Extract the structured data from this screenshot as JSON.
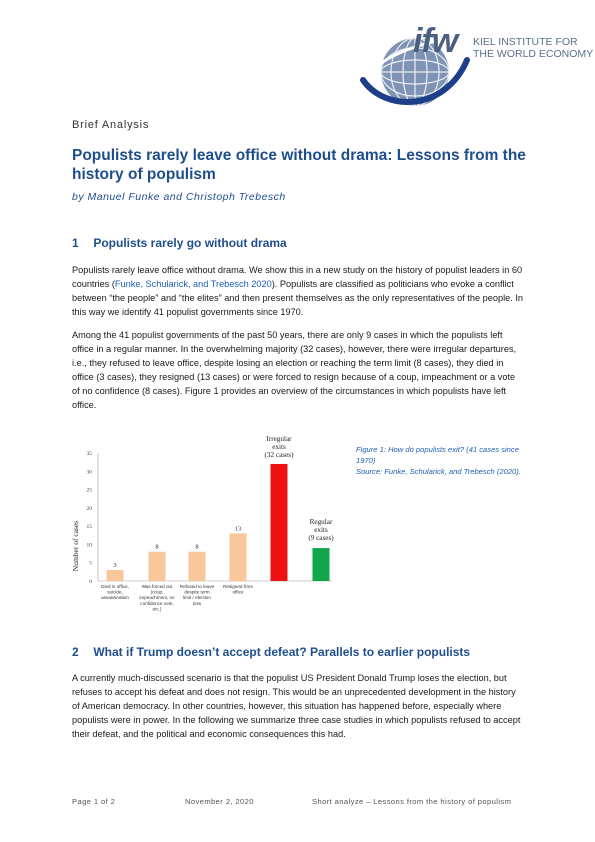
{
  "header": {
    "logo_ifw": "ifw",
    "logo_line1": "KIEL INSTITUTE FOR",
    "logo_line2": "THE WORLD ECONOMY",
    "kicker": "Brief Analysis"
  },
  "title": "Populists rarely leave office without drama: Lessons from the history of populism",
  "authors": "by Manuel Funke and Christoph Trebesch",
  "section1": {
    "num": "1",
    "heading": "Populists rarely go without drama",
    "p1_a": "Populists rarely leave office without drama. We show this in a new study on the history of populist leaders in 60 countries (",
    "p1_link": "Funke, Schularick, and Trebesch 2020",
    "p1_b": "). Populists are classified as politicians who evoke a conflict between “the people” and “the elites” and then present themselves as the only representatives of the people. In this way we identify 41 populist governments since 1970.",
    "p2": "Among the 41 populist governments of the past 50 years, there are only 9 cases in which the populists left office in a regular manner. In the overwhelming majority (32 cases), however, there were irregular departures, i.e., they refused to leave office, despite losing an election or reaching the term limit (8 cases), they died in office (3 cases), they resigned (13 cases) or were forced to resign because of a coup, impeachment or a vote of no confidence (8 cases). Figure 1 provides an overview of the circumstances in which populists have left office."
  },
  "figure": {
    "caption_1": "Figure 1: How do populists exit? (41 cases since 1970)",
    "caption_2": "Source: Funke, Schularick, and Trebesch (2020)."
  },
  "chart_data": {
    "type": "bar",
    "ylabel": "Number of cases",
    "ylim": [
      0,
      35
    ],
    "yticks": [
      0,
      5,
      10,
      15,
      20,
      25,
      30,
      35
    ],
    "grid": false,
    "bars": [
      {
        "label": "Died in office, suicide, assassination",
        "value": 3,
        "group": "irregular-detail",
        "color": "#f8c79a"
      },
      {
        "label": "Was forced out (coup, impeachment, no confidence vote, etc.)",
        "value": 8,
        "group": "irregular-detail",
        "color": "#f8c79a"
      },
      {
        "label": "Refused to leave despite term limit / election loss",
        "value": 8,
        "group": "irregular-detail",
        "color": "#f8c79a"
      },
      {
        "label": "Resigned from office",
        "value": 13,
        "group": "irregular-detail",
        "color": "#f8c79a"
      },
      {
        "label": "Irregular exits (32 cases)",
        "value": 32,
        "group": "irregular",
        "color": "#ee1111"
      },
      {
        "label": "Regular exits (9 cases)",
        "value": 9,
        "group": "regular",
        "color": "#12a54a"
      }
    ],
    "annotations": {
      "irregular_1": "Irregular",
      "irregular_2": "exits",
      "irregular_3": "(32 cases)",
      "regular_1": "Regular",
      "regular_2": "exits",
      "regular_3": "(9 cases)"
    }
  },
  "section2": {
    "num": "2",
    "heading": "What if Trump doesn’t accept defeat? Parallels to earlier populists",
    "p1": "A currently much-discussed scenario is that the populist US President Donald Trump loses the election, but refuses to accept his defeat and does not resign. This would be an unprecedented development in the history of American democracy. In other countries, however, this situation has happened before, especially where populists were in power. In the following we summarize three case studies in which populists refused to accept their defeat, and the political and economic consequences this had."
  },
  "footer": {
    "page": "Page 1 of 2",
    "date": "November 2, 2020",
    "short": "Short analyze – Lessons from the history of populism"
  },
  "colors": {
    "accent": "#1f4e8c",
    "link": "#1f5fb4"
  }
}
